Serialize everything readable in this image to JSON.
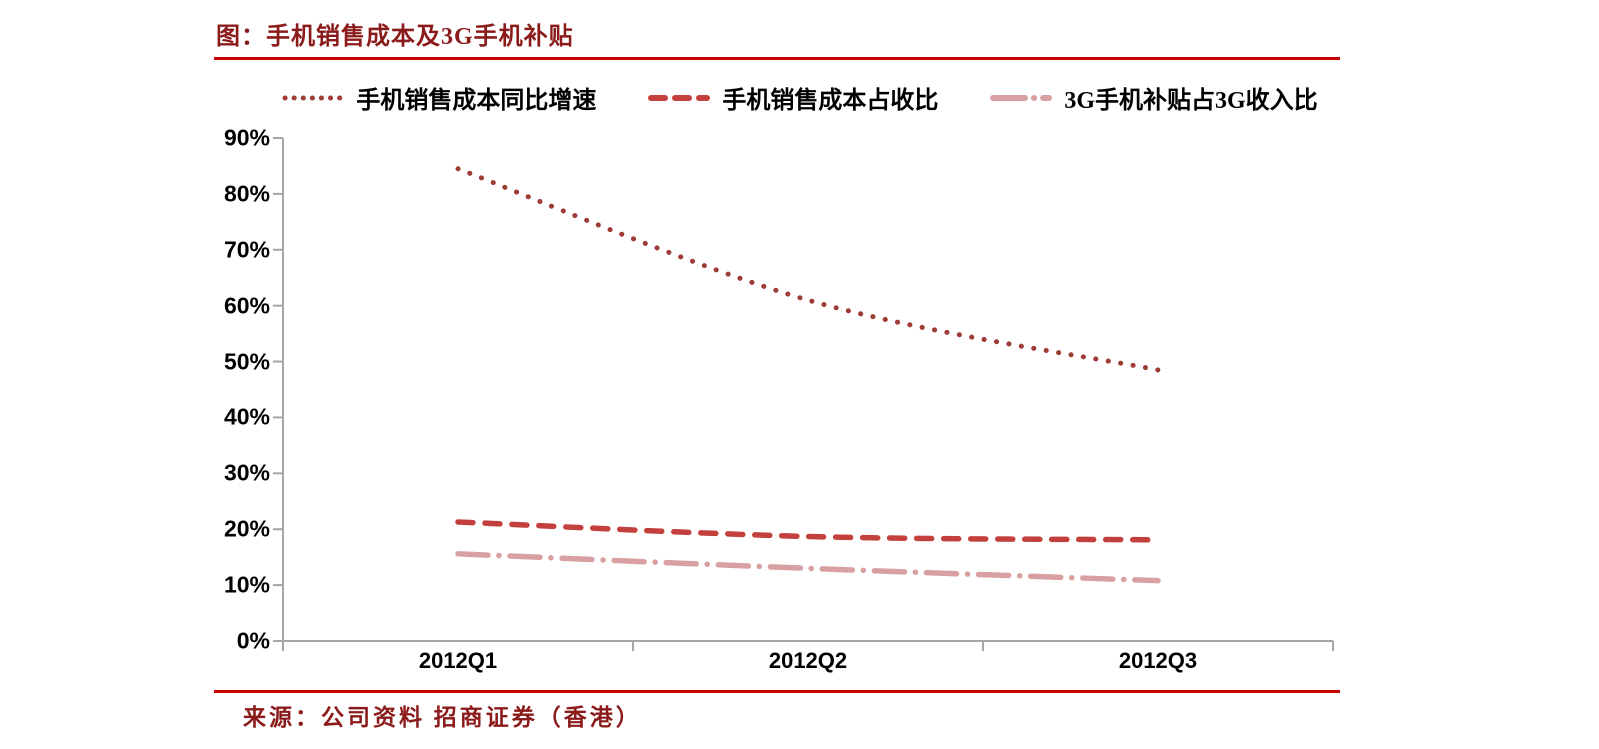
{
  "title": "图：手机销售成本及3G手机补贴",
  "source": "来源：公司资料 招商证券（香港）",
  "colors": {
    "title_text": "#8B1A1A",
    "source_text": "#8B1A1A",
    "rule": "#C80000",
    "axis": "#A6A6A6",
    "tick_text": "#000000"
  },
  "chart_data": {
    "type": "line",
    "title": "手机销售成本及3G手机补贴",
    "categories": [
      "2012Q1",
      "2012Q2",
      "2012Q3"
    ],
    "series": [
      {
        "name": "手机销售成本同比增速",
        "style": "dotted",
        "color": "#9E3B34",
        "values": [
          84.5,
          61.0,
          48.5
        ]
      },
      {
        "name": "手机销售成本占收比",
        "style": "dashed",
        "color": "#C4403C",
        "values": [
          21.3,
          18.7,
          18.1
        ]
      },
      {
        "name": "3G手机补贴占3G收入比",
        "style": "dashdot",
        "color": "#D8A0A1",
        "values": [
          15.6,
          13.0,
          10.8
        ]
      }
    ],
    "xlabel": "",
    "ylabel": "",
    "ylim": [
      0,
      90
    ],
    "ytick_step": 10,
    "ytick_labels": [
      "0%",
      "10%",
      "20%",
      "30%",
      "40%",
      "50%",
      "60%",
      "70%",
      "80%",
      "90%"
    ],
    "grid": false,
    "legend_position": "top"
  }
}
